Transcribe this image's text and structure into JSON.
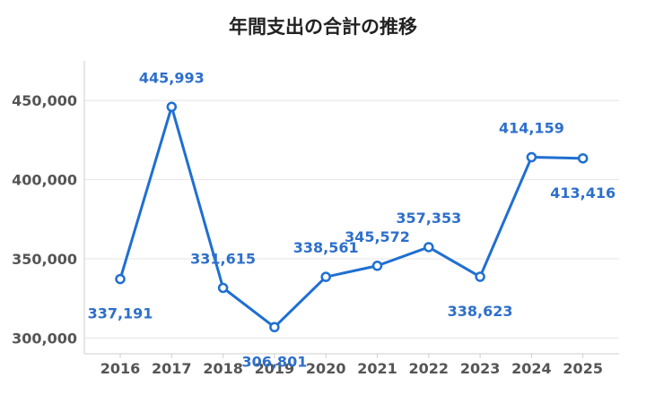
{
  "chart_data": {
    "type": "line",
    "title": "年間支出の合計の推移",
    "xlabel": "",
    "ylabel": "",
    "categories": [
      "2016",
      "2017",
      "2018",
      "2019",
      "2020",
      "2021",
      "2022",
      "2023",
      "2024",
      "2025"
    ],
    "series": [
      {
        "values": [
          337191,
          445993,
          331615,
          306801,
          338561,
          345572,
          357353,
          338623,
          414159,
          413416
        ],
        "labels": [
          "337,191",
          "445,993",
          "331,615",
          "306,801",
          "338,561",
          "345,572",
          "357,353",
          "338,623",
          "414,159",
          "413,416"
        ],
        "color": "#1f6fd1"
      }
    ],
    "ylim": [
      290000,
      475000
    ],
    "yticks": [
      300000,
      350000,
      400000,
      450000
    ],
    "ytick_labels": [
      "300,000",
      "350,000",
      "400,000",
      "450,000"
    ],
    "grid": true,
    "legend": "none",
    "colors": {
      "line": "#1f6fd1",
      "marker_fill": "#ffffff",
      "label": "#2e6fcb",
      "grid": "#e6e6e6",
      "axis": "#cfcfcf",
      "tick_text": "#555555"
    }
  }
}
